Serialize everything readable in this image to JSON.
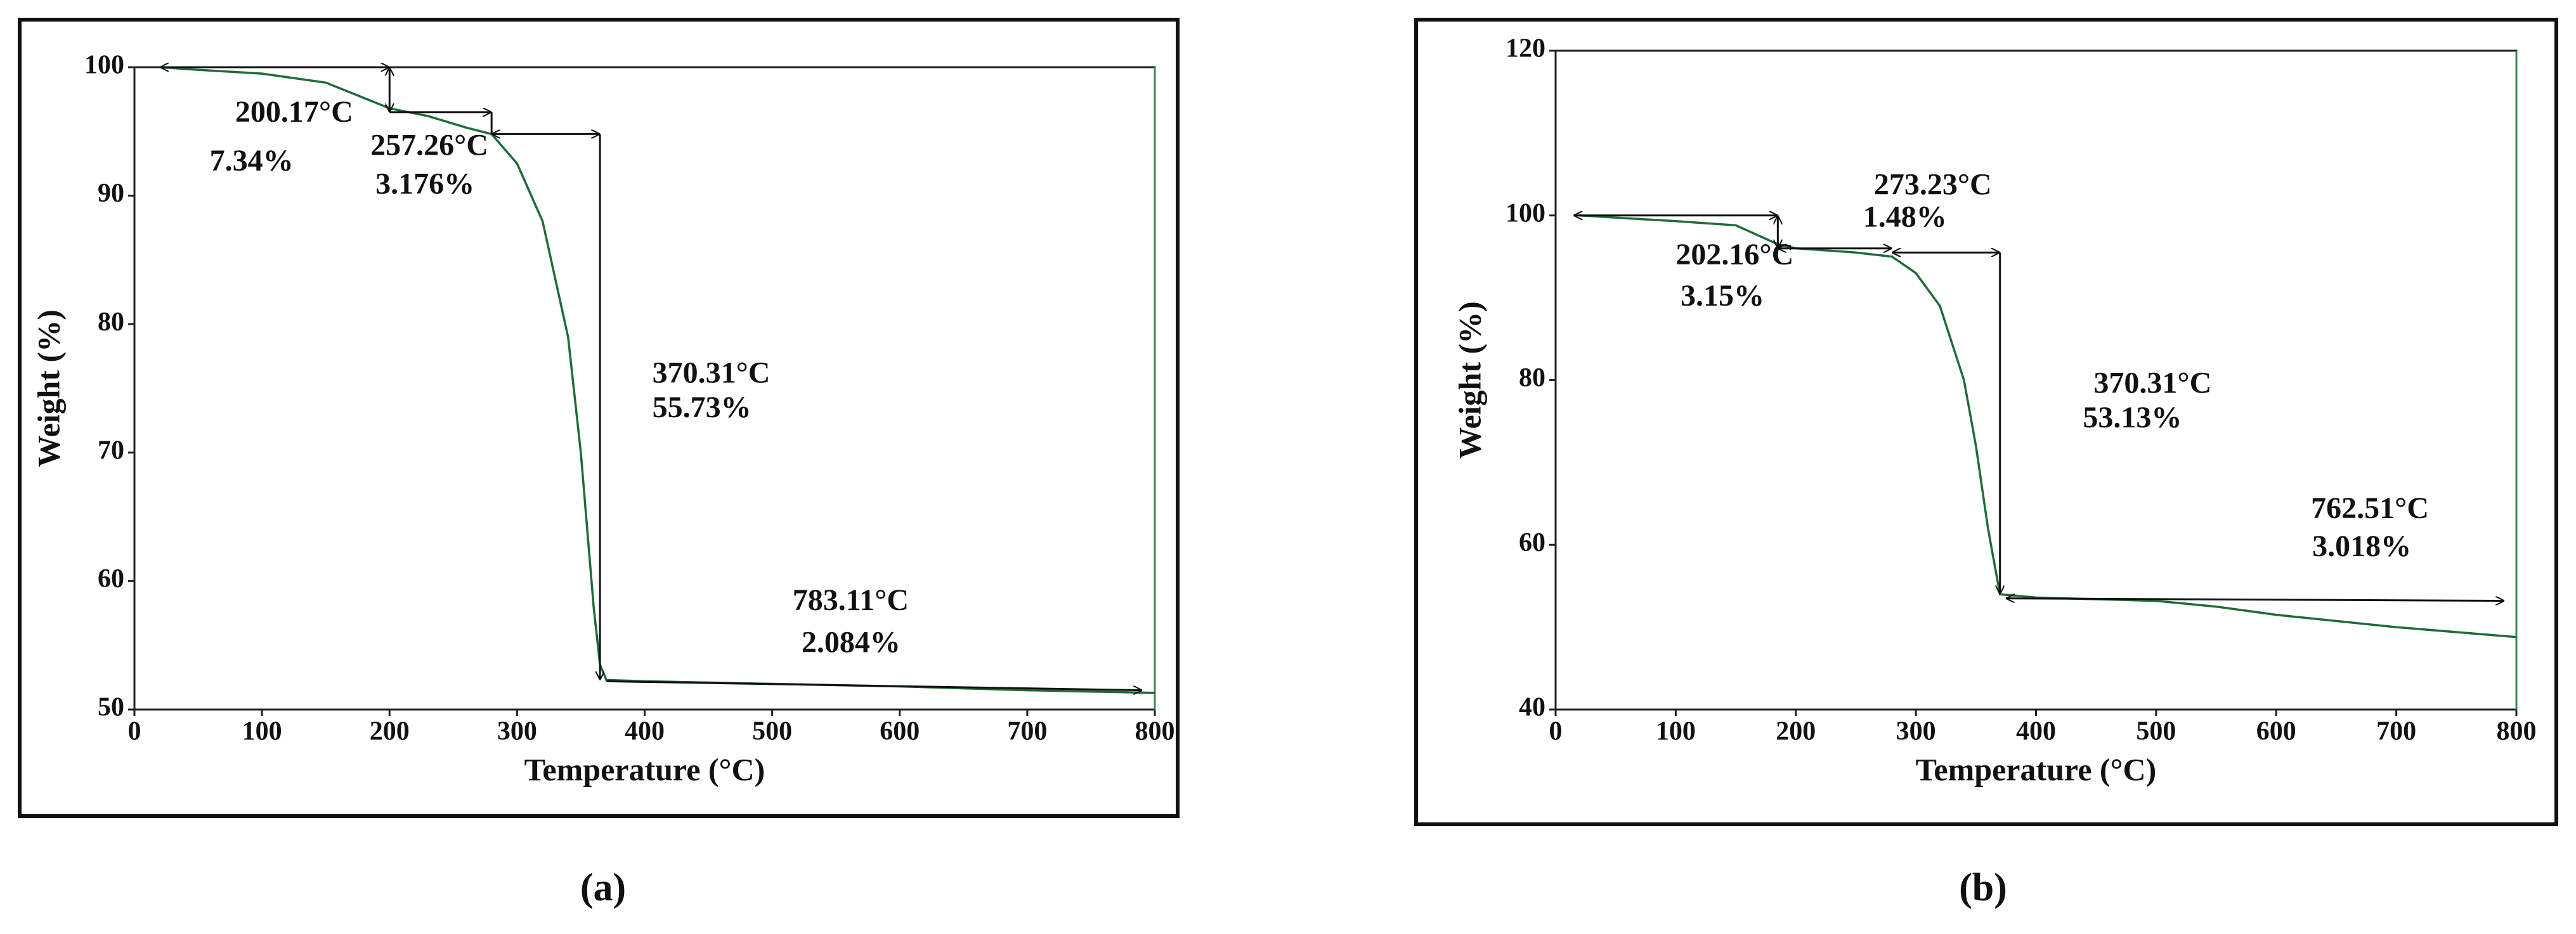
{
  "chart_data": [
    {
      "type": "line",
      "label": "(a)",
      "xlabel": "Temperature (°C)",
      "ylabel": "Weight (%)",
      "xlim": [
        0,
        800
      ],
      "ylim": [
        50,
        100
      ],
      "xticks": [
        0,
        100,
        200,
        300,
        400,
        500,
        600,
        700,
        800
      ],
      "yticks": [
        50,
        60,
        70,
        80,
        90,
        100
      ],
      "x": [
        20,
        50,
        100,
        150,
        200,
        230,
        260,
        280,
        300,
        320,
        340,
        350,
        360,
        365,
        370,
        400,
        500,
        600,
        700,
        800
      ],
      "series": [
        {
          "color": "#1f6b3a",
          "values": [
            100,
            99.8,
            99.5,
            98.8,
            96.8,
            96.2,
            95.3,
            94.8,
            92.5,
            88,
            79,
            70,
            58,
            53.5,
            52.3,
            52.2,
            52,
            51.8,
            51.5,
            51.3
          ]
        }
      ],
      "annotations": [
        "200.17°C",
        "7.34%",
        "257.26°C",
        "3.176%",
        "370.31°C",
        "55.73%",
        "783.11°C",
        "2.084%"
      ]
    },
    {
      "type": "line",
      "label": "(b)",
      "xlabel": "Temperature (°C)",
      "ylabel": "Weight (%)",
      "xlim": [
        0,
        800
      ],
      "ylim": [
        40,
        120
      ],
      "xticks": [
        0,
        100,
        200,
        300,
        400,
        500,
        600,
        700,
        800
      ],
      "yticks": [
        40,
        60,
        80,
        100,
        120
      ],
      "x": [
        20,
        100,
        150,
        185,
        200,
        250,
        280,
        300,
        320,
        340,
        350,
        360,
        370,
        400,
        500,
        550,
        600,
        700,
        800
      ],
      "series": [
        {
          "color": "#1f6b3a",
          "values": [
            100,
            99.3,
            98.8,
            96.5,
            96,
            95.5,
            95,
            93,
            89,
            80,
            72,
            62,
            54,
            53.6,
            53.2,
            52.5,
            51.5,
            50,
            48.8
          ]
        }
      ],
      "annotations": [
        "273.23°C",
        "1.48%",
        "202.16°C",
        "3.15%",
        "370.31°C",
        "53.13%",
        "762.51°C",
        "3.018%"
      ]
    }
  ]
}
